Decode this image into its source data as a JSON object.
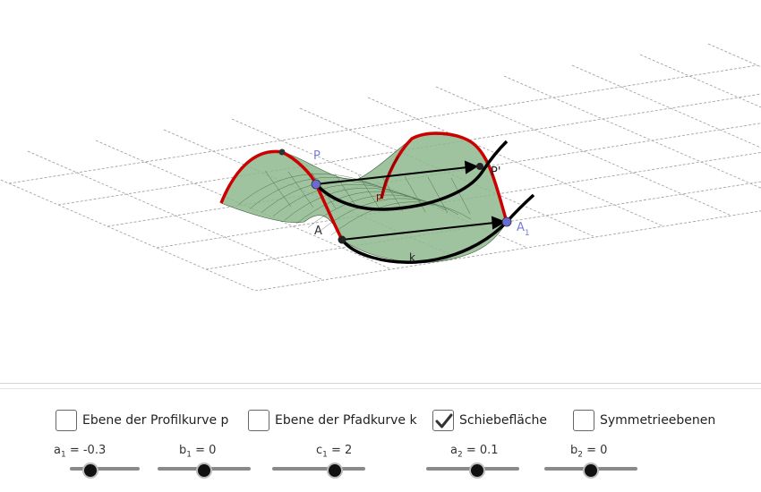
{
  "graphics": {
    "labels": {
      "P": "P",
      "P_prime": "P'",
      "A": "A",
      "A1_main": "A",
      "A1_sub": "1",
      "k": "k",
      "p": "p"
    },
    "colors": {
      "surface": "#7aaa7a",
      "profile_curve": "#cc0000",
      "path_curve": "#000000",
      "point_blue": "#6b6bd6",
      "label_blue": "#7b7be0"
    }
  },
  "checkboxes": [
    {
      "label": "Ebene der Profilkurve p",
      "checked": false
    },
    {
      "label": "Ebene der Pfadkurve k",
      "checked": false
    },
    {
      "label": "Schiebefläche",
      "checked": true
    },
    {
      "label": "Symmetrieebenen",
      "checked": false
    }
  ],
  "sliders": [
    {
      "var": "a",
      "sub": "1",
      "value_text": " = -0.3",
      "fraction": 0.3
    },
    {
      "var": "b",
      "sub": "1",
      "value_text": " = 0",
      "fraction": 0.5
    },
    {
      "var": "c",
      "sub": "1",
      "value_text": " = 2",
      "fraction": 0.67
    },
    {
      "var": "a",
      "sub": "2",
      "value_text": " = 0.1",
      "fraction": 0.55
    },
    {
      "var": "b",
      "sub": "2",
      "value_text": " = 0",
      "fraction": 0.5
    }
  ]
}
